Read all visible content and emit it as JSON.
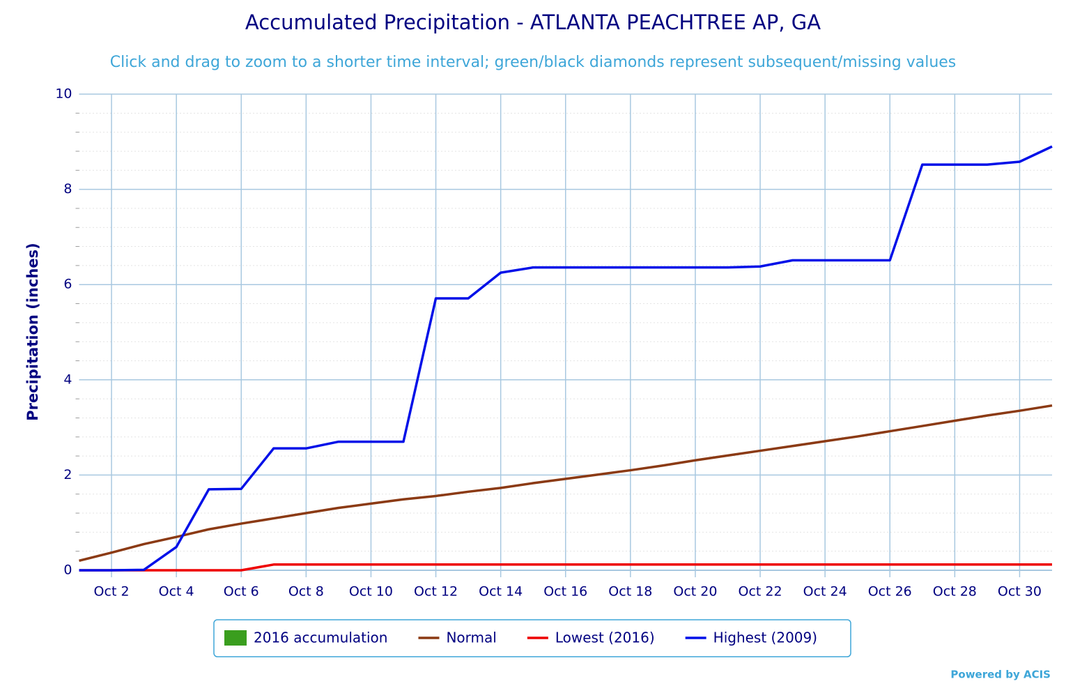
{
  "chart_data": {
    "type": "line",
    "title": "Accumulated Precipitation - ATLANTA PEACHTREE AP, GA",
    "subtitle": "Click and drag to zoom to a shorter time interval; green/black diamonds represent subsequent/missing values",
    "y_label": "Precipitation (inches)",
    "credit": "Powered by ACIS",
    "categories": [
      null,
      "Oct 2",
      null,
      "Oct 4",
      null,
      "Oct 6",
      null,
      "Oct 8",
      null,
      "Oct 10",
      null,
      "Oct 12",
      null,
      "Oct 14",
      null,
      "Oct 16",
      null,
      "Oct 18",
      null,
      "Oct 20",
      null,
      "Oct 22",
      null,
      "Oct 24",
      null,
      "Oct 26",
      null,
      "Oct 28",
      null,
      "Oct 30",
      null
    ],
    "ylim": [
      0,
      10
    ],
    "yticks": [
      0,
      2,
      4,
      6,
      8,
      10
    ],
    "grid": true,
    "legend": "bottom",
    "series": [
      {
        "name": "2016 accumulation",
        "color": "#3a9e1e",
        "type": "area",
        "values": [
          null,
          null,
          null,
          null,
          null,
          null,
          null,
          null,
          null,
          null,
          null,
          null,
          null,
          null,
          null,
          null,
          null,
          null,
          null,
          null,
          null,
          null,
          null,
          null,
          null,
          null,
          null,
          null,
          null,
          null,
          null
        ]
      },
      {
        "name": "Normal",
        "color": "#8b3a14",
        "type": "line",
        "values": [
          0.2,
          0.37,
          0.55,
          0.7,
          0.86,
          0.98,
          1.09,
          1.2,
          1.31,
          1.4,
          1.49,
          1.56,
          1.65,
          1.73,
          1.83,
          1.92,
          2.01,
          2.1,
          2.2,
          2.31,
          2.41,
          2.51,
          2.61,
          2.71,
          2.81,
          2.92,
          3.03,
          3.14,
          3.25,
          3.35,
          3.46
        ]
      },
      {
        "name": "Lowest (2016)",
        "color": "#ee0000",
        "type": "line",
        "values": [
          0,
          0,
          0,
          0,
          0,
          0,
          0.12,
          0.12,
          0.12,
          0.12,
          0.12,
          0.12,
          0.12,
          0.12,
          0.12,
          0.12,
          0.12,
          0.12,
          0.12,
          0.12,
          0.12,
          0.12,
          0.12,
          0.12,
          0.12,
          0.12,
          0.12,
          0.12,
          0.12,
          0.12,
          0.12
        ]
      },
      {
        "name": "Highest (2009)",
        "color": "#0010e8",
        "type": "line",
        "values": [
          0,
          0,
          0.01,
          0.49,
          1.7,
          1.71,
          2.56,
          2.56,
          2.7,
          2.7,
          2.7,
          5.71,
          5.71,
          6.25,
          6.36,
          6.36,
          6.36,
          6.36,
          6.36,
          6.36,
          6.36,
          6.38,
          6.51,
          6.51,
          6.51,
          6.51,
          8.52,
          8.52,
          8.52,
          8.58,
          8.9
        ]
      }
    ]
  }
}
